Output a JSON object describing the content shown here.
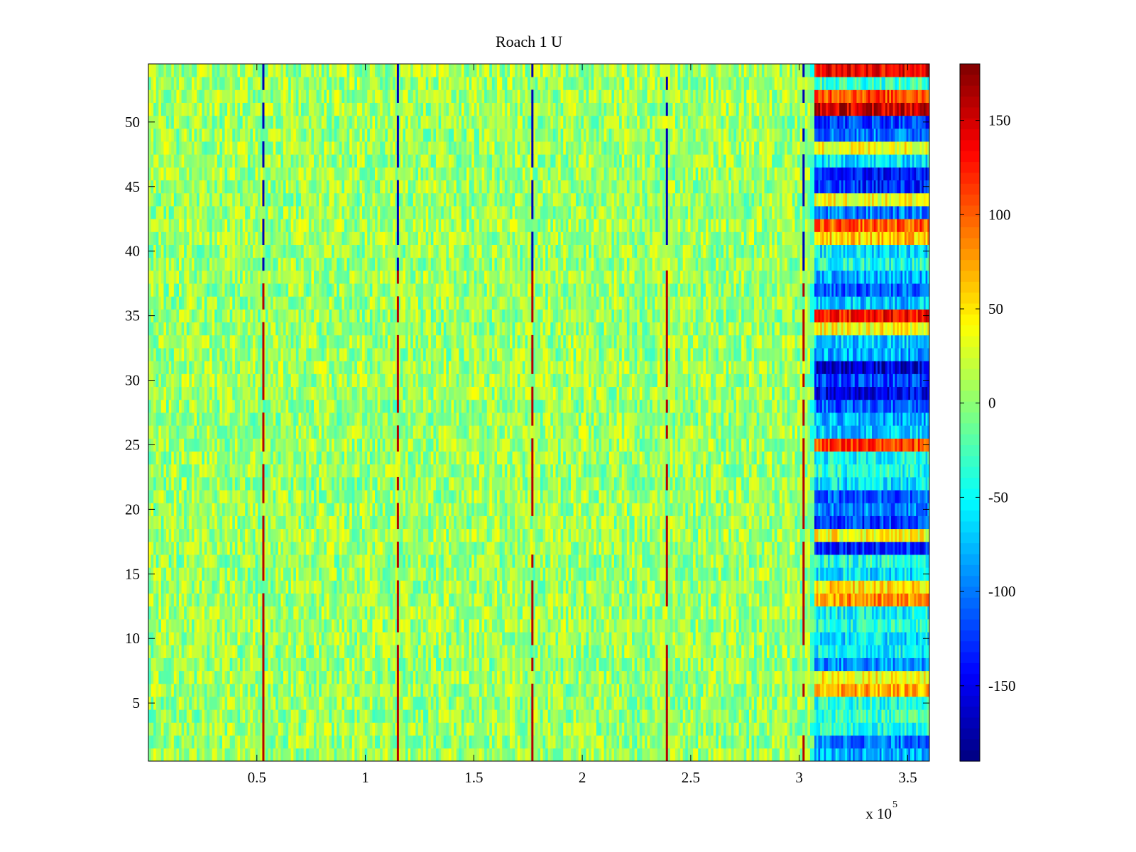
{
  "chart_data": {
    "type": "heatmap",
    "title": "Roach 1 U",
    "xlabel": "",
    "ylabel": "",
    "x_multiplier_label": {
      "base": "x 10",
      "exponent": "5"
    },
    "xlim": [
      0,
      3.6
    ],
    "x_unit_scale": 100000,
    "ylim": [
      0.5,
      54.5
    ],
    "rows": 54,
    "x_ticks": [
      0.5,
      1,
      1.5,
      2,
      2.5,
      3,
      3.5
    ],
    "x_tick_labels": [
      "0.5",
      "1",
      "1.5",
      "2",
      "2.5",
      "3",
      "3.5"
    ],
    "y_ticks": [
      5,
      10,
      15,
      20,
      25,
      30,
      35,
      40,
      45,
      50
    ],
    "y_tick_labels": [
      "5",
      "10",
      "15",
      "20",
      "25",
      "30",
      "35",
      "40",
      "45",
      "50"
    ],
    "colormap": "jet",
    "clim": [
      -190,
      180
    ],
    "colorbar": {
      "ticks": [
        150,
        100,
        50,
        0,
        -50,
        -100,
        -150
      ],
      "tick_labels": [
        "150",
        "100",
        "50",
        "0",
        "-50",
        "-100",
        "-150"
      ],
      "placement": "right"
    },
    "baseline": {
      "x_range": [
        0,
        3.05
      ],
      "typical_value_range": [
        -30,
        40
      ]
    },
    "vertical_event_lines": {
      "x": [
        0.53,
        1.15,
        1.77,
        2.39,
        3.02
      ],
      "upper_rows_value": -170,
      "lower_rows_value": 160,
      "sign_change_row": 39
    },
    "late_segment": {
      "x_range": [
        3.07,
        3.6
      ],
      "row_mean_values": [
        {
          "row": 1,
          "value": -80
        },
        {
          "row": 2,
          "value": -100
        },
        {
          "row": 3,
          "value": -40
        },
        {
          "row": 4,
          "value": -30
        },
        {
          "row": 5,
          "value": -40
        },
        {
          "row": 6,
          "value": 70
        },
        {
          "row": 7,
          "value": 40
        },
        {
          "row": 8,
          "value": -90
        },
        {
          "row": 9,
          "value": -50
        },
        {
          "row": 10,
          "value": -60
        },
        {
          "row": 11,
          "value": -40
        },
        {
          "row": 12,
          "value": -50
        },
        {
          "row": 13,
          "value": 80
        },
        {
          "row": 14,
          "value": 50
        },
        {
          "row": 15,
          "value": -60
        },
        {
          "row": 16,
          "value": -40
        },
        {
          "row": 17,
          "value": -130
        },
        {
          "row": 18,
          "value": 40
        },
        {
          "row": 19,
          "value": -120
        },
        {
          "row": 20,
          "value": -100
        },
        {
          "row": 21,
          "value": -110
        },
        {
          "row": 22,
          "value": -60
        },
        {
          "row": 23,
          "value": -40
        },
        {
          "row": 24,
          "value": -50
        },
        {
          "row": 25,
          "value": 110
        },
        {
          "row": 26,
          "value": -70
        },
        {
          "row": 27,
          "value": -80
        },
        {
          "row": 28,
          "value": -110
        },
        {
          "row": 29,
          "value": -150
        },
        {
          "row": 30,
          "value": -120
        },
        {
          "row": 31,
          "value": -160
        },
        {
          "row": 32,
          "value": -80
        },
        {
          "row": 33,
          "value": -70
        },
        {
          "row": 34,
          "value": 40
        },
        {
          "row": 35,
          "value": 130
        },
        {
          "row": 36,
          "value": -70
        },
        {
          "row": 37,
          "value": -110
        },
        {
          "row": 38,
          "value": -80
        },
        {
          "row": 39,
          "value": -40
        },
        {
          "row": 40,
          "value": -60
        },
        {
          "row": 41,
          "value": 60
        },
        {
          "row": 42,
          "value": 100
        },
        {
          "row": 43,
          "value": -100
        },
        {
          "row": 44,
          "value": 40
        },
        {
          "row": 45,
          "value": -130
        },
        {
          "row": 46,
          "value": -140
        },
        {
          "row": 47,
          "value": -60
        },
        {
          "row": 48,
          "value": 40
        },
        {
          "row": 49,
          "value": -100
        },
        {
          "row": 50,
          "value": -120
        },
        {
          "row": 51,
          "value": 150
        },
        {
          "row": 52,
          "value": 110
        },
        {
          "row": 53,
          "value": -30
        },
        {
          "row": 54,
          "value": 140
        }
      ]
    }
  }
}
